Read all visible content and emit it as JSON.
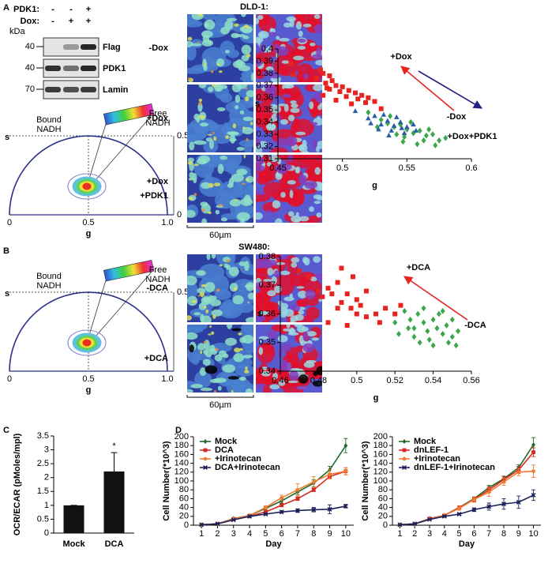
{
  "panel_labels": [
    "A",
    "B",
    "C",
    "D"
  ],
  "blot": {
    "row_labels": [
      "PDK1:",
      "Dox:"
    ],
    "signs": [
      [
        "-",
        "-",
        "+"
      ],
      [
        "-",
        "+",
        "+"
      ]
    ],
    "mw_unit": "kDa",
    "bands": [
      {
        "name": "Flag",
        "mw": 40
      },
      {
        "name": "PDK1",
        "mw": 40
      },
      {
        "name": "Lamin",
        "mw": 70
      }
    ]
  },
  "phasors": [
    {
      "bound_label": [
        "Bound",
        "NADH"
      ],
      "free_label": [
        "Free",
        "NADH"
      ],
      "s_label": "s",
      "g_label": "g",
      "g_ticks": [
        "0",
        "0.5",
        "1.0"
      ],
      "s_ticks": [
        "0.5",
        "0"
      ]
    },
    {
      "bound_label": [
        "Bound",
        "NADH"
      ],
      "free_label": [
        "Free",
        "NADH"
      ],
      "s_label": "s",
      "g_label": "g",
      "g_ticks": [
        "0",
        "0.5",
        "1.0"
      ],
      "s_ticks": [
        "0.5"
      ]
    }
  ],
  "microscopy": [
    {
      "title": "DLD-1:",
      "scale_bar": "60µm",
      "conditions": [
        {
          "lines": [
            "-Dox"
          ],
          "color": "#1e6b2a"
        },
        {
          "lines": [
            "+Dox"
          ],
          "color": "#e8231f"
        },
        {
          "lines": [
            "+Dox",
            "+PDK1"
          ],
          "color": "#1f2080"
        }
      ]
    },
    {
      "title": "SW480:",
      "scale_bar": "60µm",
      "conditions": [
        {
          "lines": [
            "-DCA"
          ],
          "color": "#1e6b2a"
        },
        {
          "lines": [
            "+DCA"
          ],
          "color": "#e8231f"
        }
      ]
    }
  ],
  "chart_data": [
    {
      "type": "scatter",
      "xlabel": "g",
      "ylabel": "s",
      "xlim": [
        0.45,
        0.6
      ],
      "xticks": [
        0.45,
        0.5,
        0.55,
        0.6
      ],
      "ylim": [
        0.31,
        0.4
      ],
      "yticks": [
        0.31,
        0.32,
        0.33,
        0.34,
        0.35,
        0.36,
        0.37,
        0.38,
        0.39,
        0.4
      ],
      "series": [
        {
          "name": "+Dox",
          "color": "#e8231f",
          "marker": "square",
          "x": [
            0.46,
            0.462,
            0.483,
            0.485,
            0.48,
            0.49,
            0.487,
            0.492,
            0.495,
            0.49,
            0.5,
            0.498,
            0.505,
            0.51,
            0.503,
            0.515,
            0.512,
            0.52,
            0.518,
            0.525,
            0.485,
            0.495,
            0.53,
            0.507,
            0.488
          ],
          "values": [
            0.388,
            0.379,
            0.383,
            0.38,
            0.376,
            0.378,
            0.372,
            0.374,
            0.37,
            0.367,
            0.369,
            0.365,
            0.366,
            0.364,
            0.361,
            0.362,
            0.359,
            0.36,
            0.356,
            0.357,
            0.362,
            0.358,
            0.351,
            0.355,
            0.368
          ]
        },
        {
          "name": "-Dox",
          "color": "#3aa84a",
          "marker": "diamond",
          "x": [
            0.52,
            0.53,
            0.535,
            0.54,
            0.545,
            0.55,
            0.555,
            0.56,
            0.565,
            0.57,
            0.575,
            0.58,
            0.548,
            0.558,
            0.563,
            0.542,
            0.537,
            0.553,
            0.567,
            0.527,
            0.547,
            0.572
          ],
          "values": [
            0.348,
            0.342,
            0.339,
            0.336,
            0.338,
            0.334,
            0.331,
            0.333,
            0.329,
            0.33,
            0.325,
            0.327,
            0.328,
            0.322,
            0.325,
            0.33,
            0.345,
            0.34,
            0.334,
            0.336,
            0.324,
            0.321
          ]
        },
        {
          "name": "+Dox+PDK1",
          "color": "#2a5caa",
          "marker": "triangle",
          "x": [
            0.51,
            0.52,
            0.525,
            0.53,
            0.535,
            0.528,
            0.54,
            0.545,
            0.538,
            0.55,
            0.555,
            0.532,
            0.548,
            0.522,
            0.542,
            0.536,
            0.557,
            0.546
          ],
          "values": [
            0.349,
            0.343,
            0.345,
            0.338,
            0.341,
            0.334,
            0.337,
            0.34,
            0.333,
            0.336,
            0.338,
            0.346,
            0.331,
            0.339,
            0.344,
            0.329,
            0.333,
            0.335
          ]
        }
      ]
    },
    {
      "type": "scatter",
      "xlabel": "g",
      "ylabel": "s",
      "xlim": [
        0.46,
        0.56
      ],
      "xticks": [
        0.46,
        0.48,
        0.5,
        0.52,
        0.54,
        0.56
      ],
      "ylim": [
        0.34,
        0.38
      ],
      "yticks": [
        0.34,
        0.35,
        0.36,
        0.37,
        0.38
      ],
      "series": [
        {
          "name": "+DCA",
          "color": "#e8231f",
          "marker": "square",
          "x": [
            0.47,
            0.475,
            0.48,
            0.482,
            0.485,
            0.487,
            0.49,
            0.492,
            0.495,
            0.497,
            0.5,
            0.5,
            0.502,
            0.505,
            0.49,
            0.485,
            0.495,
            0.51,
            0.515,
            0.52,
            0.512,
            0.498,
            0.492,
            0.523,
            0.505
          ],
          "values": [
            0.375,
            0.373,
            0.368,
            0.366,
            0.369,
            0.367,
            0.371,
            0.364,
            0.367,
            0.362,
            0.365,
            0.36,
            0.363,
            0.359,
            0.362,
            0.357,
            0.356,
            0.36,
            0.362,
            0.36,
            0.357,
            0.373,
            0.376,
            0.363,
            0.368
          ]
        },
        {
          "name": "-DCA",
          "color": "#3aa84a",
          "marker": "diamond",
          "x": [
            0.52,
            0.525,
            0.528,
            0.53,
            0.532,
            0.535,
            0.537,
            0.54,
            0.542,
            0.545,
            0.547,
            0.55,
            0.552,
            0.538,
            0.535,
            0.543,
            0.548,
            0.53,
            0.527,
            0.54,
            0.545,
            0.553,
            0.522,
            0.533,
            0.55
          ],
          "values": [
            0.357,
            0.361,
            0.358,
            0.355,
            0.36,
            0.357,
            0.354,
            0.358,
            0.355,
            0.353,
            0.356,
            0.352,
            0.349,
            0.351,
            0.362,
            0.36,
            0.35,
            0.352,
            0.355,
            0.349,
            0.361,
            0.354,
            0.353,
            0.35,
            0.358
          ]
        }
      ]
    },
    {
      "type": "bar",
      "ylabel": "OCR/ECAR (pMoles/mpl)",
      "annotation": "*",
      "categories": [
        "Mock",
        "DCA"
      ],
      "values": [
        1,
        2.22
      ],
      "errors": [
        0,
        0.68
      ],
      "color": "#111111",
      "ylim": [
        0,
        3.5
      ],
      "yticks": [
        0,
        0.5,
        1,
        1.5,
        2,
        2.5,
        3,
        3.5
      ]
    },
    {
      "type": "line",
      "xlabel": "Day",
      "ylabel": "Cell Number(*10^3)",
      "legend": "upper left",
      "x": [
        1,
        2,
        3,
        4,
        5,
        6,
        7,
        8,
        9,
        10
      ],
      "xlim": [
        0.5,
        10.5
      ],
      "xticks": [
        1,
        2,
        3,
        4,
        5,
        6,
        7,
        8,
        9,
        10
      ],
      "ylim": [
        0,
        200
      ],
      "yticks": [
        0,
        20,
        40,
        60,
        80,
        100,
        120,
        140,
        160,
        180,
        200
      ],
      "series": [
        {
          "name": "Mock",
          "color": "#1e6b2a",
          "marker": "diamond",
          "values": [
            1,
            3,
            15,
            22,
            38,
            55,
            75,
            95,
            125,
            180
          ],
          "errors": [
            0,
            1,
            2,
            3,
            4,
            5,
            6,
            8,
            8,
            16
          ]
        },
        {
          "name": "DCA",
          "color": "#d42a20",
          "marker": "square",
          "values": [
            1,
            3,
            14,
            20,
            30,
            45,
            60,
            80,
            110,
            122
          ],
          "errors": [
            0,
            1,
            1,
            2,
            2,
            3,
            4,
            4,
            5,
            8
          ]
        },
        {
          "name": "+Irinotecan",
          "color": "#f07a30",
          "marker": "asterisk",
          "values": [
            1,
            3,
            14,
            22,
            40,
            62,
            80,
            98,
            115,
            122
          ],
          "errors": [
            0,
            1,
            2,
            3,
            4,
            6,
            14,
            12,
            10,
            8
          ]
        },
        {
          "name": "DCA+Irinotecan",
          "color": "#1a1f5a",
          "marker": "cross",
          "values": [
            1,
            3,
            12,
            20,
            25,
            30,
            33,
            35,
            36,
            43
          ],
          "errors": [
            0,
            1,
            1,
            2,
            2,
            3,
            4,
            5,
            10,
            4
          ]
        }
      ]
    },
    {
      "type": "line",
      "xlabel": "Day",
      "ylabel": "Cell Number(*10^3)",
      "legend": "upper left",
      "x": [
        1,
        2,
        3,
        4,
        5,
        6,
        7,
        8,
        9,
        10
      ],
      "xlim": [
        0.5,
        10.5
      ],
      "xticks": [
        1,
        2,
        3,
        4,
        5,
        6,
        7,
        8,
        9,
        10
      ],
      "ylim": [
        0,
        200
      ],
      "yticks": [
        0,
        20,
        40,
        60,
        80,
        100,
        120,
        140,
        160,
        180,
        200
      ],
      "series": [
        {
          "name": "Mock",
          "color": "#1e6b2a",
          "marker": "diamond",
          "values": [
            1,
            3,
            15,
            22,
            40,
            60,
            85,
            105,
            130,
            182
          ],
          "errors": [
            0,
            1,
            2,
            3,
            3,
            4,
            5,
            6,
            7,
            16
          ]
        },
        {
          "name": "dnLEF-1",
          "color": "#d42a20",
          "marker": "square",
          "values": [
            1,
            3,
            15,
            22,
            40,
            58,
            80,
            103,
            125,
            165
          ],
          "errors": [
            0,
            1,
            2,
            3,
            3,
            5,
            6,
            7,
            8,
            10
          ]
        },
        {
          "name": "+Irinotecan",
          "color": "#f07a30",
          "marker": "asterisk",
          "values": [
            1,
            3,
            14,
            22,
            38,
            58,
            75,
            98,
            120,
            122
          ],
          "errors": [
            0,
            1,
            2,
            3,
            4,
            6,
            10,
            8,
            8,
            14
          ]
        },
        {
          "name": "dnLEF-1+Irinotecan",
          "color": "#1a1f5a",
          "marker": "cross",
          "values": [
            1,
            3,
            13,
            20,
            25,
            35,
            42,
            48,
            52,
            68
          ],
          "errors": [
            0,
            1,
            1,
            2,
            2,
            4,
            8,
            12,
            14,
            12
          ]
        }
      ]
    }
  ]
}
